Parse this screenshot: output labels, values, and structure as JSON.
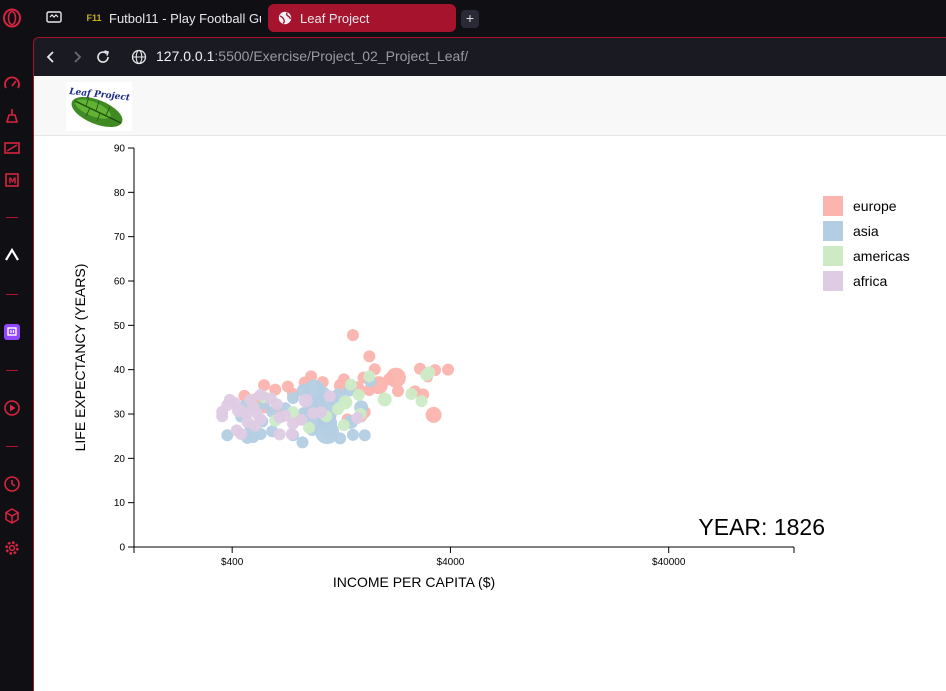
{
  "browser": {
    "tabs": [
      {
        "label": "Futbol11 - Play Football Gu",
        "favicon_text": "F11",
        "active": false
      },
      {
        "label": "Leaf Project",
        "favicon_text": "",
        "active": true
      }
    ],
    "new_tab_label": "+",
    "url_host": "127.0.0.1",
    "url_rest": ":5500/Exercise/Project_02_Project_Leaf/",
    "accent": "#a6132c"
  },
  "page": {
    "logo_text": "Leaf Project"
  },
  "chart_data": {
    "type": "scatter",
    "title": "",
    "xlabel": "INCOME PER CAPITA ($)",
    "ylabel": "LIFE EXPECTANCY (YEARS)",
    "x_scale": "log",
    "xlim": [
      142,
      150000
    ],
    "ylim": [
      0,
      90
    ],
    "xticks": [
      400,
      4000,
      40000
    ],
    "xtick_labels": [
      "$400",
      "$4000",
      "$40000"
    ],
    "yticks": [
      0,
      10,
      20,
      30,
      40,
      50,
      60,
      70,
      80,
      90
    ],
    "year_label": "YEAR: 1826",
    "legend_position": "right",
    "legend": [
      {
        "name": "europe",
        "color": "#fbb4ae"
      },
      {
        "name": "asia",
        "color": "#b3cde3"
      },
      {
        "name": "americas",
        "color": "#ccebc5"
      },
      {
        "name": "africa",
        "color": "#decbe4"
      }
    ],
    "series": [
      {
        "name": "europe",
        "color": "#fbb4ae",
        "points": [
          [
            1430,
            47.8,
            6
          ],
          [
            1700,
            43,
            6
          ],
          [
            3900,
            40,
            6
          ],
          [
            2900,
            40.2,
            6
          ],
          [
            3400,
            39.9,
            6
          ],
          [
            3150,
            38.2,
            5
          ],
          [
            2100,
            37.9,
            6
          ],
          [
            2250,
            38.2,
            10
          ],
          [
            1880,
            36.5,
            9
          ],
          [
            1700,
            35.4,
            6
          ],
          [
            1500,
            35.8,
            7
          ],
          [
            2300,
            35.2,
            6
          ],
          [
            2750,
            35.1,
            6
          ],
          [
            3000,
            34.4,
            6
          ],
          [
            1260,
            36.4,
            7
          ],
          [
            1040,
            37.2,
            6
          ],
          [
            860,
            37.1,
            6
          ],
          [
            920,
            38.5,
            6
          ],
          [
            720,
            36.2,
            6
          ],
          [
            760,
            34.5,
            6
          ],
          [
            560,
            36.5,
            6
          ],
          [
            630,
            35.5,
            6
          ],
          [
            520,
            33.5,
            6
          ],
          [
            455,
            34.1,
            6
          ],
          [
            1620,
            30.4,
            6
          ],
          [
            1120,
            25.8,
            6
          ],
          [
            1560,
            29.5,
            6
          ],
          [
            3350,
            29.8,
            8
          ],
          [
            640,
            30.5,
            6
          ],
          [
            1350,
            28.8,
            6
          ],
          [
            820,
            29,
            6
          ],
          [
            560,
            31.5,
            6
          ],
          [
            1300,
            37.8,
            6
          ],
          [
            1600,
            38.2,
            6
          ],
          [
            1800,
            40.1,
            6
          ],
          [
            1000,
            32.5,
            6
          ]
        ]
      },
      {
        "name": "asia",
        "color": "#b3cde3",
        "points": [
          [
            1010,
            30.3,
            17
          ],
          [
            1090,
            25.9,
            12
          ],
          [
            1090,
            27.9,
            10
          ],
          [
            950,
            35.3,
            11
          ],
          [
            850,
            35.2,
            7
          ],
          [
            1230,
            34.2,
            7
          ],
          [
            1400,
            28.2,
            7
          ],
          [
            1560,
            31.5,
            7
          ],
          [
            1720,
            37.4,
            6
          ],
          [
            1430,
            25.3,
            6
          ],
          [
            1050,
            34.5,
            7
          ],
          [
            1150,
            33.2,
            6
          ],
          [
            700,
            31.3,
            6
          ],
          [
            850,
            30.2,
            6
          ],
          [
            610,
            30.5,
            6
          ],
          [
            550,
            28.3,
            6
          ],
          [
            500,
            24.8,
            6
          ],
          [
            540,
            25.5,
            6
          ],
          [
            485,
            27.1,
            6
          ],
          [
            470,
            24.6,
            6
          ],
          [
            440,
            29.4,
            6
          ],
          [
            1250,
            24.5,
            6
          ],
          [
            840,
            23.6,
            6
          ],
          [
            1620,
            25.2,
            6
          ],
          [
            1050,
            28.2,
            6
          ],
          [
            900,
            32.5,
            6
          ],
          [
            560,
            32.3,
            6
          ],
          [
            1380,
            35.3,
            6
          ],
          [
            455,
            31.8,
            6
          ],
          [
            930,
            26.4,
            6
          ],
          [
            380,
            25.2,
            6
          ],
          [
            760,
            33.6,
            6
          ],
          [
            610,
            26.1,
            6
          ],
          [
            760,
            25.2,
            6
          ]
        ]
      },
      {
        "name": "americas",
        "color": "#ccebc5",
        "points": [
          [
            1320,
            32.6,
            7
          ],
          [
            1520,
            34.3,
            6
          ],
          [
            1700,
            38.5,
            6
          ],
          [
            2000,
            33.3,
            7
          ],
          [
            2650,
            34.5,
            6
          ],
          [
            2950,
            32.9,
            6
          ],
          [
            3100,
            38.8,
            6
          ],
          [
            3200,
            39.4,
            6
          ],
          [
            1220,
            31.1,
            6
          ],
          [
            1400,
            36.6,
            6
          ],
          [
            1300,
            27.5,
            6
          ],
          [
            900,
            26.9,
            6
          ],
          [
            760,
            30.4,
            6
          ],
          [
            630,
            28.5,
            6
          ],
          [
            560,
            33.8,
            6
          ],
          [
            500,
            31.5,
            6
          ],
          [
            1080,
            29.5,
            6
          ],
          [
            1550,
            30,
            6
          ]
        ]
      },
      {
        "name": "africa",
        "color": "#decbe4",
        "points": [
          [
            360,
            30.5,
            6
          ],
          [
            390,
            33.2,
            6
          ],
          [
            410,
            32.5,
            6
          ],
          [
            430,
            30.8,
            7
          ],
          [
            380,
            32,
            6
          ],
          [
            360,
            29.5,
            6
          ],
          [
            465,
            30.1,
            6
          ],
          [
            500,
            31.3,
            6
          ],
          [
            520,
            30.1,
            6
          ],
          [
            540,
            28.8,
            6
          ],
          [
            470,
            28.2,
            6
          ],
          [
            510,
            27.4,
            6
          ],
          [
            440,
            25.5,
            6
          ],
          [
            420,
            26.3,
            6
          ],
          [
            485,
            33.2,
            6
          ],
          [
            540,
            34.3,
            6
          ],
          [
            600,
            33.5,
            6
          ],
          [
            640,
            32.2,
            6
          ],
          [
            700,
            29.6,
            6
          ],
          [
            760,
            27.8,
            6
          ],
          [
            830,
            28.7,
            6
          ],
          [
            870,
            33,
            7
          ],
          [
            940,
            30.2,
            6
          ],
          [
            660,
            25.4,
            6
          ],
          [
            750,
            25.5,
            6
          ],
          [
            1500,
            29.1,
            6
          ],
          [
            1020,
            30.4,
            6
          ],
          [
            1120,
            34,
            6
          ],
          [
            660,
            29.2,
            6
          ]
        ]
      }
    ]
  }
}
